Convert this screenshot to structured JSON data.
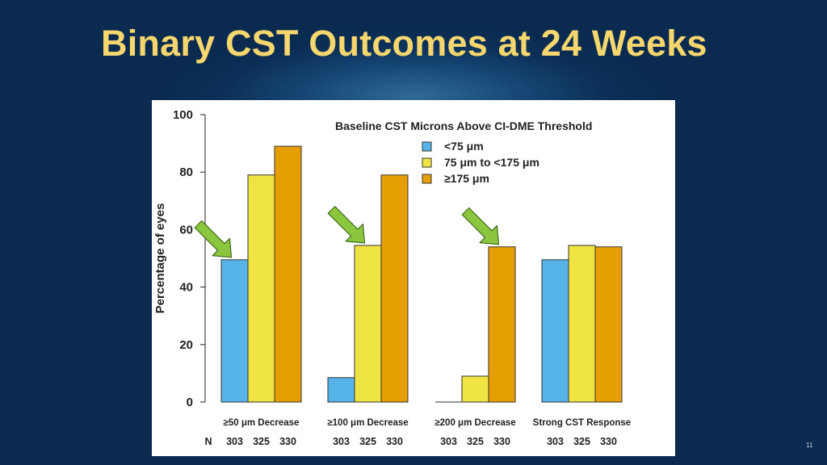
{
  "slide": {
    "title": "Binary CST Outcomes at 24 Weeks",
    "page_number": "11"
  },
  "chart_data": {
    "type": "bar",
    "title": "",
    "ylabel": "Percentage of eyes",
    "xlabel": "",
    "ylim": [
      0,
      100
    ],
    "yticks": [
      0,
      20,
      40,
      60,
      80,
      100
    ],
    "grid": false,
    "legend": {
      "title": "Baseline CST Microns Above CI-DME Threshold",
      "placement": "top-right"
    },
    "categories": [
      "≥50 μm Decrease",
      "≥100 μm Decrease",
      "≥200 μm Decrease",
      "Strong CST Response"
    ],
    "series": [
      {
        "name": "<75 μm",
        "color": "#56b4e9",
        "values": [
          49.5,
          8.5,
          0,
          49.5
        ]
      },
      {
        "name": "75 μm to <175 μm",
        "color": "#f0e442",
        "values": [
          79,
          54.5,
          9,
          54.5
        ]
      },
      {
        "name": "≥175 μm",
        "color": "#e69f00",
        "values": [
          89,
          79,
          54,
          54
        ]
      }
    ],
    "n_label": "N",
    "n_values": [
      [
        "303",
        "325",
        "330"
      ],
      [
        "303",
        "325",
        "330"
      ],
      [
        "303",
        "325",
        "330"
      ],
      [
        "303",
        "325",
        "330"
      ]
    ],
    "annotations": [
      {
        "type": "arrow",
        "color": "#8cc63f",
        "points_to": {
          "category": 0,
          "series": 0
        }
      },
      {
        "type": "arrow",
        "color": "#8cc63f",
        "points_to": {
          "category": 1,
          "series": 1
        }
      },
      {
        "type": "arrow",
        "color": "#8cc63f",
        "points_to": {
          "category": 2,
          "series": 2
        }
      }
    ]
  }
}
